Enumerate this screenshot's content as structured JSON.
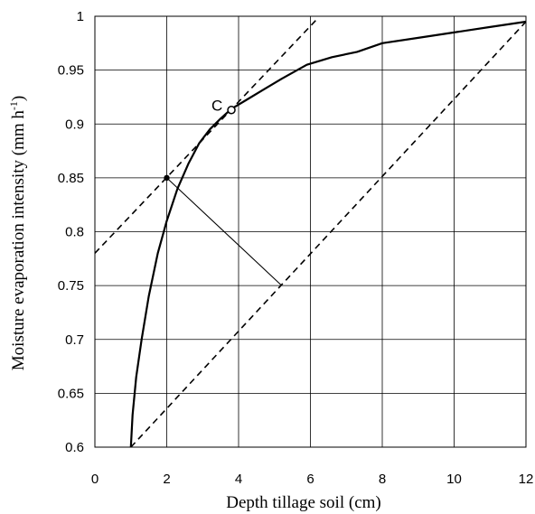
{
  "chart_data": {
    "type": "line",
    "xlabel": "Depth tillage soil (cm)",
    "ylabel_main": "Moisture evaporation intensity (mm h",
    "ylabel_sup": "-1",
    "ylabel_close": ")",
    "xlim": [
      0,
      12
    ],
    "ylim": [
      0.6,
      1.0
    ],
    "x_ticks": [
      "0",
      "2",
      "4",
      "6",
      "8",
      "10",
      "12"
    ],
    "y_ticks": [
      "0.6",
      "0.65",
      "0.7",
      "0.75",
      "0.8",
      "0.85",
      "0.9",
      "0.95",
      "1"
    ],
    "grid": true,
    "series": [
      {
        "style": "solid",
        "x": [
          1.0,
          1.05,
          1.15,
          1.3,
          1.5,
          1.75,
          2.0,
          2.3,
          2.6,
          2.9,
          3.2,
          3.5,
          3.8,
          4.2,
          4.7,
          5.2,
          5.9,
          6.6,
          7.3,
          8.0,
          9.0,
          10.0,
          11.0,
          12.0
        ],
        "y": [
          0.6,
          0.63,
          0.665,
          0.7,
          0.74,
          0.78,
          0.81,
          0.84,
          0.863,
          0.882,
          0.895,
          0.905,
          0.914,
          0.922,
          0.932,
          0.942,
          0.955,
          0.962,
          0.967,
          0.975,
          0.98,
          0.985,
          0.99,
          0.995
        ]
      },
      {
        "style": "dashed",
        "x": [
          0.0,
          6.2
        ],
        "y": [
          0.78,
          0.998
        ]
      },
      {
        "style": "dashed",
        "x": [
          1.0,
          12.0
        ],
        "y": [
          0.6,
          0.995
        ]
      },
      {
        "style": "solid-thin",
        "x": [
          2.0,
          5.2
        ],
        "y": [
          0.85,
          0.75
        ]
      }
    ],
    "points": [
      {
        "label": "",
        "x": 2.0,
        "y": 0.85,
        "marker": "filled"
      },
      {
        "label": "C",
        "x": 3.8,
        "y": 0.913,
        "marker": "circle"
      }
    ]
  }
}
